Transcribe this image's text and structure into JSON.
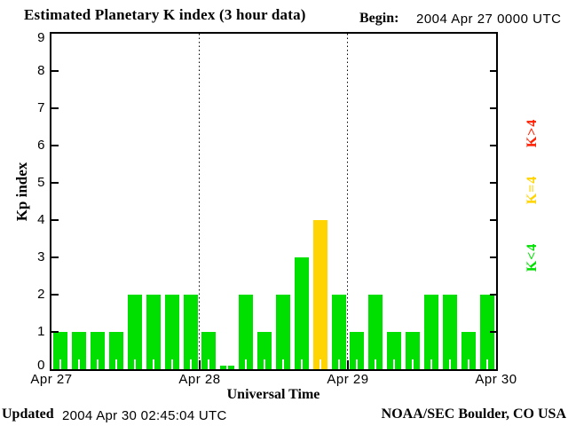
{
  "header": {
    "title": "Estimated Planetary K index (3 hour data)",
    "begin_label": "Begin:",
    "begin_value": "2004 Apr 27 0000 UTC"
  },
  "footer": {
    "updated_label": "Updated",
    "updated_value": "2004 Apr 30 02:45:04 UTC",
    "credit": "NOAA/SEC Boulder, CO USA"
  },
  "legend": {
    "gt4": {
      "label": "K>4",
      "color": "#ff1e00"
    },
    "eq4": {
      "label": "K=4",
      "color": "#ffd400"
    },
    "lt4": {
      "label": "K<4",
      "color": "#00e000"
    }
  },
  "colors": {
    "bar_below4": "#00e000",
    "bar_equal4": "#ffd400",
    "bar_above4": "#ff1e00",
    "axis": "#000000",
    "background": "#ffffff"
  },
  "chart_data": {
    "type": "bar",
    "title": "Estimated Planetary K index (3 hour data)",
    "xlabel": "Universal Time",
    "ylabel": "Kp index",
    "ylim": [
      0,
      9
    ],
    "y_tick_labels": [
      "0",
      "1",
      "2",
      "3",
      "4",
      "5",
      "6",
      "7",
      "8",
      "9"
    ],
    "x_tick_labels": [
      "Apr 27",
      "Apr 28",
      "Apr 29",
      "Apr 30"
    ],
    "interval_hours": 3,
    "bars_per_day": 8,
    "days": 3,
    "values": [
      1,
      1,
      1,
      1,
      2,
      2,
      2,
      2,
      1,
      0,
      2,
      1,
      2,
      3,
      4,
      2,
      1,
      2,
      1,
      1,
      2,
      2,
      1,
      2
    ],
    "series_note": "one Kp value per 3-hour interval starting 2004 Apr 27 0000 UTC",
    "color_rule": "green if K<4, yellow if K=4, red if K>4",
    "legend_position": "right-margin, rotated",
    "grid": "no gridlines; dotted vertical lines at day boundaries"
  }
}
